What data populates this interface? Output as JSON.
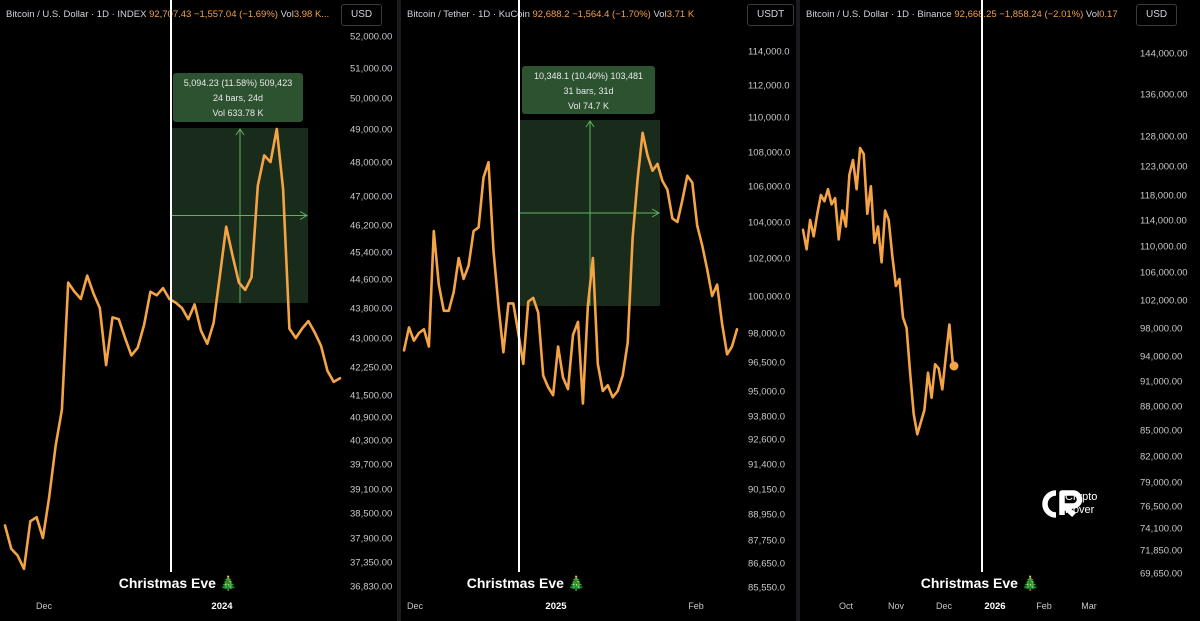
{
  "chart_data": [
    {
      "type": "line",
      "header": {
        "title": "Bitcoin / U.S. Dollar · 1D · INDEX",
        "price": "92,707.43",
        "change": "−1,557.04 (−1.69%)",
        "vol_label": "Vol",
        "vol_value": "3.98 K..."
      },
      "currency": "USD",
      "y_ticks": [
        "52,000.00",
        "51,000.00",
        "50,000.00",
        "49,000.00",
        "48,000.00",
        "47,000.00",
        "46,200.00",
        "45,400.00",
        "44,600.00",
        "43,800.00",
        "43,000.00",
        "42,250.00",
        "41,500.00",
        "40,900.00",
        "40,300.00",
        "39,700.00",
        "39,100.00",
        "38,500.00",
        "37,900.00",
        "37,350.00",
        "36,830.00"
      ],
      "x_ticks": [
        {
          "label": "Dec",
          "year": false
        },
        {
          "label": "2024",
          "year": true
        }
      ],
      "annotation": "Christmas Eve 🎄",
      "measure": {
        "line1": "5,094.23 (11.58%) 509,423",
        "line2": "24 bars, 24d",
        "line3": "Vol 633.78 K"
      },
      "y_values": [
        38200,
        37650,
        37500,
        37200,
        38300,
        38400,
        37900,
        38900,
        40150,
        41100,
        44500,
        44250,
        44050,
        44700,
        44200,
        43800,
        42300,
        43550,
        43500,
        43000,
        42550,
        42750,
        43350,
        44250,
        44150,
        44350,
        44050,
        43950,
        43800,
        43500,
        43900,
        43200,
        42850,
        43400,
        44700,
        46150,
        45300,
        44500,
        44300,
        44650,
        47300,
        48200,
        48000,
        49000,
        47200,
        43250,
        43000,
        43250,
        43450,
        43150,
        42800,
        42150,
        41850,
        41950
      ]
    },
    {
      "type": "line",
      "header": {
        "title": "Bitcoin / Tether · 1D · KuCoin",
        "price": "92,688.2",
        "change": "−1,564.4 (−1.70%)",
        "vol_label": "Vol",
        "vol_value": "3.71 K"
      },
      "currency": "USDT",
      "y_ticks": [
        "114,000.0",
        "112,000.0",
        "110,000.0",
        "108,000.0",
        "106,000.0",
        "104,000.0",
        "102,000.0",
        "100,000.0",
        "98,000.0",
        "96,500.0",
        "95,000.0",
        "93,800.0",
        "92,600.0",
        "91,400.0",
        "90,150.0",
        "88,950.0",
        "87,750.0",
        "86,650.0",
        "85,550.0"
      ],
      "x_ticks": [
        {
          "label": "Dec",
          "year": false
        },
        {
          "label": "2025",
          "year": true
        },
        {
          "label": "Feb",
          "year": false
        }
      ],
      "annotation": "Christmas Eve 🎄",
      "measure": {
        "line1": "10,348.1 (10.40%) 103,481",
        "line2": "31 bars, 31d",
        "line3": "Vol 74.7 K"
      },
      "y_values": [
        97100,
        98300,
        97600,
        98000,
        98200,
        97300,
        103500,
        100600,
        99200,
        99200,
        100200,
        102000,
        100900,
        101600,
        103500,
        103700,
        106500,
        107400,
        102400,
        99500,
        97000,
        99600,
        99600,
        98000,
        96400,
        99700,
        99900,
        99100,
        95800,
        95200,
        94800,
        97300,
        95700,
        95100,
        97900,
        98600,
        94400,
        99500,
        102000,
        96400,
        95000,
        95300,
        94700,
        95000,
        95800,
        97500,
        103100,
        106400,
        109100,
        107800,
        106900,
        107300,
        106300,
        105800,
        104200,
        104000,
        105200,
        106600,
        106200,
        103800,
        102700,
        101400,
        100000,
        100600,
        98500,
        96900,
        97300,
        98200
      ]
    },
    {
      "type": "line",
      "header": {
        "title": "Bitcoin / U.S. Dollar · 1D · Binance",
        "price": "92,668.25",
        "change": "−1,858.24 (−2.01%)",
        "vol_label": "Vol",
        "vol_value": "0.17"
      },
      "currency": "USD",
      "y_ticks": [
        "144,000.00",
        "136,000.00",
        "128,000.00",
        "123,000.00",
        "118,000.00",
        "114,000.00",
        "110,000.00",
        "106,000.00",
        "102,000.00",
        "98,000.00",
        "94,000.00",
        "91,000.00",
        "88,000.00",
        "85,000.00",
        "82,000.00",
        "79,000.00",
        "76,500.00",
        "74,100.00",
        "71,850.00",
        "69,650.00"
      ],
      "x_ticks": [
        {
          "label": "Oct",
          "year": false
        },
        {
          "label": "Nov",
          "year": false
        },
        {
          "label": "Dec",
          "year": false
        },
        {
          "label": "2026",
          "year": true
        },
        {
          "label": "Feb",
          "year": false
        },
        {
          "label": "Mar",
          "year": false
        }
      ],
      "annotation": "Christmas Eve 🎄",
      "y_values": [
        112500,
        109500,
        114000,
        111500,
        115000,
        118000,
        117000,
        119000,
        116500,
        117500,
        111000,
        115500,
        113000,
        121500,
        124000,
        119000,
        126000,
        125000,
        115000,
        119500,
        110500,
        113000,
        107500,
        115500,
        114000,
        108500,
        104000,
        105000,
        99500,
        98000,
        92000,
        87000,
        84500,
        86000,
        87500,
        92000,
        89000,
        93000,
        92500,
        90000,
        94000,
        98500,
        92800
      ]
    }
  ],
  "watermark": {
    "line1": "Crypto",
    "line2": "Rover"
  },
  "colors": {
    "line": "#f5a445",
    "measure_fill": "#1d3320",
    "measure_line": "#5fb462",
    "vline": "#ffffff"
  }
}
